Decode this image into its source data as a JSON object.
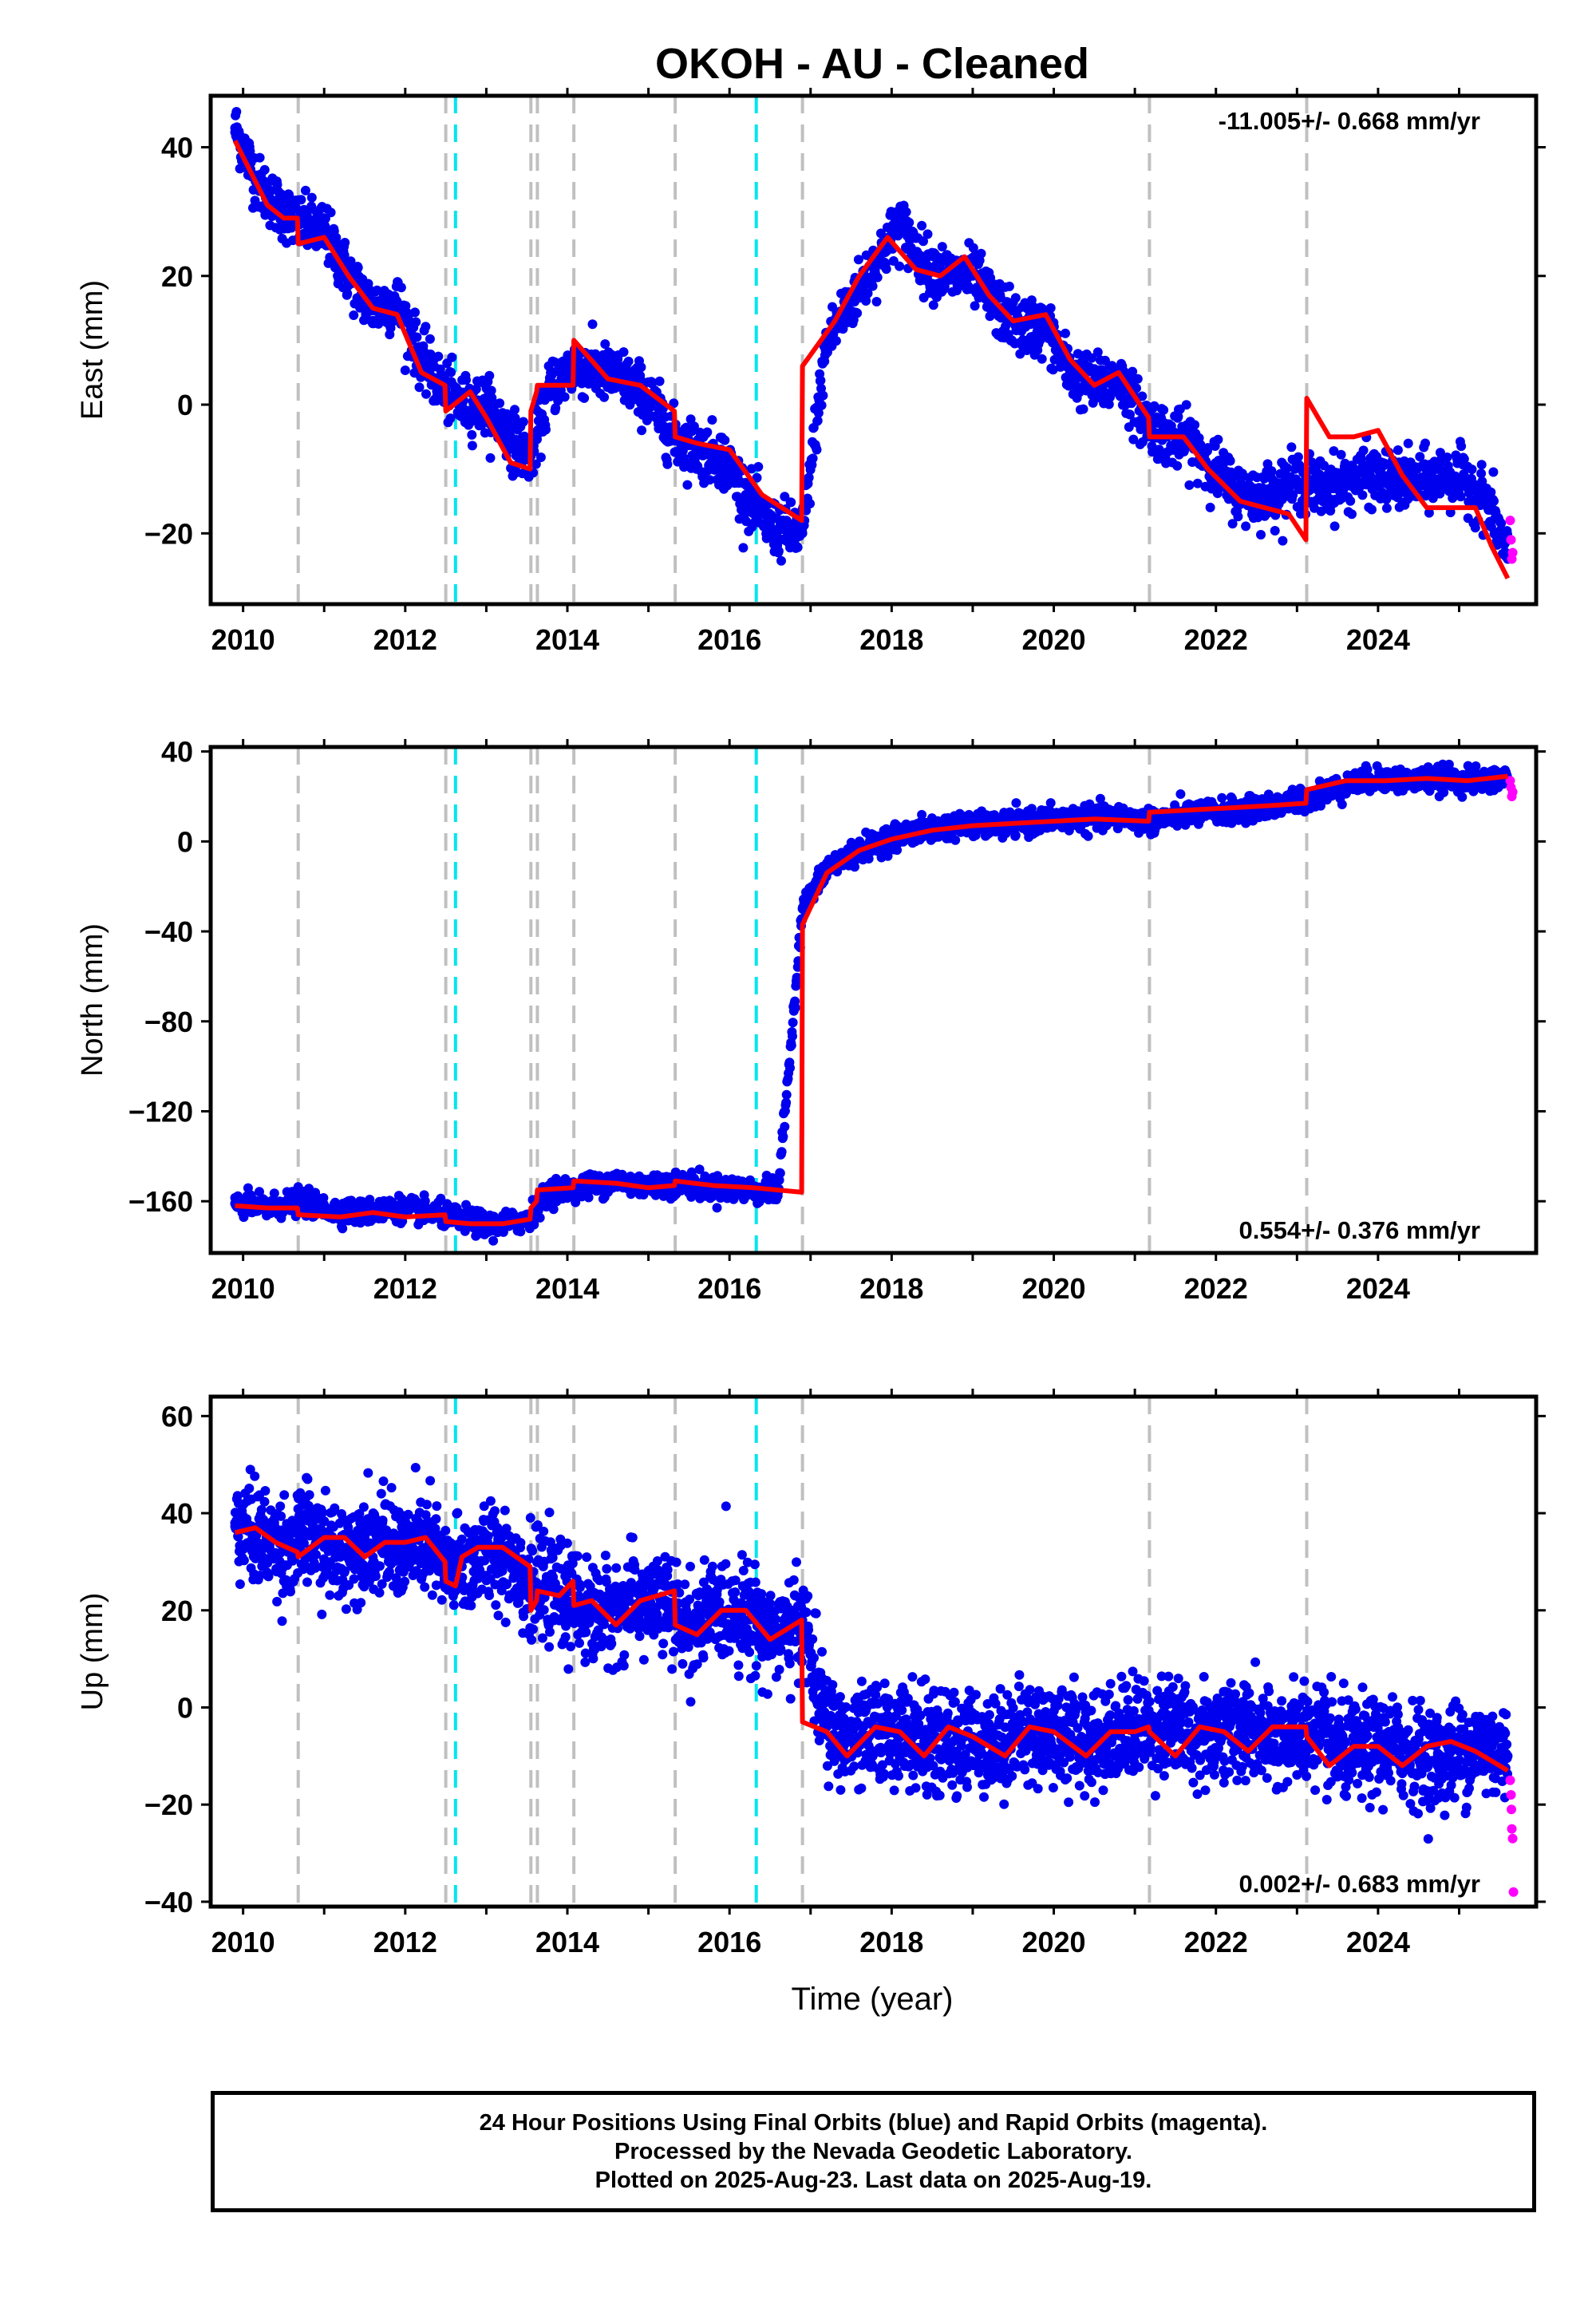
{
  "title": "OKOH  - AU - Cleaned",
  "xlabel": "Time (year)",
  "colors": {
    "final": "#0000ee",
    "rapid": "#ff00ff",
    "model": "#ff0000",
    "equipment_change": "#c0c0c0",
    "earthquake": "#00e5ee",
    "frame": "#000000"
  },
  "x_ticks": [
    2010,
    2012,
    2014,
    2016,
    2018,
    2020,
    2022,
    2024
  ],
  "xlim": [
    2009.6,
    2025.95
  ],
  "vertical_lines": {
    "equipment_change": [
      2010.68,
      2012.5,
      2013.55,
      2013.63,
      2014.08,
      2015.33,
      2016.9,
      2021.18,
      2023.12
    ],
    "earthquake": [
      2012.62,
      2016.33
    ]
  },
  "chart_data": [
    {
      "type": "scatter",
      "ylabel": "East (mm)",
      "ylim": [
        -31,
        48
      ],
      "y_ticks": [
        -20,
        0,
        20,
        40
      ],
      "rate_label": "-11.005+/- 0.668 mm/yr",
      "rate_position": "top-right",
      "series": [
        {
          "name": "Final Orbits (blue)",
          "x": [
            2009.9,
            2010.2,
            2010.5,
            2010.7,
            2011.0,
            2011.3,
            2011.6,
            2011.9,
            2012.2,
            2012.5,
            2012.7,
            2013.0,
            2013.3,
            2013.55,
            2013.8,
            2014.1,
            2014.4,
            2014.7,
            2015.0,
            2015.3,
            2015.6,
            2015.9,
            2016.2,
            2016.5,
            2016.9,
            2017.2,
            2017.5,
            2017.8,
            2018.1,
            2018.4,
            2018.7,
            2019.0,
            2019.3,
            2019.6,
            2019.9,
            2020.2,
            2020.5,
            2020.8,
            2021.1,
            2021.4,
            2021.7,
            2022.0,
            2022.3,
            2022.6,
            2023.0,
            2023.3,
            2023.6,
            2023.9,
            2024.2,
            2024.5,
            2024.8,
            2025.1,
            2025.4,
            2025.6
          ],
          "y": [
            43,
            34,
            30,
            28,
            27,
            20,
            15,
            16,
            7,
            2,
            0,
            0,
            -5,
            -8,
            3,
            6,
            5,
            4,
            1,
            -5,
            -7,
            -8,
            -14,
            -19,
            -20,
            10,
            16,
            22,
            28,
            22,
            20,
            20,
            15,
            12,
            12,
            5,
            3,
            4,
            -2,
            -5,
            -6,
            -10,
            -14,
            -14,
            -12,
            -13,
            -12,
            -11,
            -12,
            -12,
            -11,
            -12,
            -16,
            -24
          ]
        },
        {
          "name": "Rapid Orbits (magenta)",
          "x": [
            2025.63,
            2025.64,
            2025.65,
            2025.66
          ],
          "y": [
            -18,
            -21,
            -24,
            -23
          ]
        },
        {
          "name": "model",
          "x": [
            2009.9,
            2010.1,
            2010.3,
            2010.5,
            2010.67,
            2010.68,
            2011.0,
            2011.3,
            2011.6,
            2011.9,
            2012.2,
            2012.49,
            2012.5,
            2012.8,
            2013.0,
            2013.3,
            2013.54,
            2013.55,
            2013.62,
            2013.63,
            2014.07,
            2014.08,
            2014.5,
            2014.9,
            2015.32,
            2015.33,
            2015.6,
            2016.0,
            2016.4,
            2016.89,
            2016.9,
            2017.3,
            2017.6,
            2017.95,
            2018.3,
            2018.6,
            2018.9,
            2019.2,
            2019.5,
            2019.9,
            2020.2,
            2020.5,
            2020.8,
            2021.17,
            2021.18,
            2021.6,
            2021.9,
            2022.3,
            2022.6,
            2022.9,
            2023.11,
            2023.12,
            2023.4,
            2023.7,
            2024.0,
            2024.3,
            2024.6,
            2024.9,
            2025.2,
            2025.4,
            2025.6
          ],
          "y": [
            41,
            36,
            31,
            29,
            29,
            25,
            26,
            20,
            15,
            14,
            5,
            3,
            -1,
            2,
            -2,
            -9,
            -10,
            -1,
            2,
            3,
            3,
            10,
            4,
            3,
            -1,
            -5,
            -6,
            -7,
            -14,
            -18,
            6,
            13,
            20,
            26,
            21,
            20,
            23,
            17,
            13,
            14,
            7,
            3,
            5,
            -2,
            -5,
            -5,
            -10,
            -15,
            -16,
            -17,
            -21,
            1,
            -5,
            -5,
            -4,
            -11,
            -16,
            -16,
            -16,
            -22,
            -27
          ]
        }
      ]
    },
    {
      "type": "scatter",
      "ylabel": "North (mm)",
      "ylim": [
        -183,
        42
      ],
      "y_ticks": [
        -160,
        -120,
        -80,
        -40,
        0,
        40
      ],
      "rate_label": "0.554+/- 0.376 mm/yr",
      "rate_position": "bottom-right",
      "series": [
        {
          "name": "Final Orbits (blue)",
          "x": [
            2009.9,
            2010.3,
            2010.7,
            2011.1,
            2011.5,
            2011.9,
            2012.3,
            2012.7,
            2013.1,
            2013.5,
            2013.8,
            2014.2,
            2014.6,
            2015.0,
            2015.4,
            2015.8,
            2016.2,
            2016.6,
            2016.9,
            2017.2,
            2017.6,
            2018.0,
            2018.4,
            2018.8,
            2019.2,
            2019.6,
            2020.0,
            2020.4,
            2020.8,
            2021.2,
            2021.6,
            2022.0,
            2022.4,
            2022.8,
            2023.2,
            2023.6,
            2024.0,
            2024.4,
            2024.8,
            2025.2,
            2025.6
          ],
          "y": [
            -161,
            -163,
            -160,
            -164,
            -165,
            -163,
            -165,
            -168,
            -171,
            -168,
            -155,
            -154,
            -151,
            -153,
            -152,
            -154,
            -155,
            -156,
            -30,
            -12,
            -4,
            2,
            5,
            7,
            7,
            8,
            10,
            10,
            11,
            9,
            12,
            13,
            14,
            16,
            20,
            25,
            28,
            27,
            28,
            27,
            28
          ]
        },
        {
          "name": "Rapid Orbits (magenta)",
          "x": [
            2025.63,
            2025.64,
            2025.65,
            2025.66
          ],
          "y": [
            27,
            24,
            20,
            22
          ]
        },
        {
          "name": "model",
          "x": [
            2009.9,
            2010.3,
            2010.67,
            2010.68,
            2011.2,
            2011.6,
            2012.0,
            2012.49,
            2012.5,
            2012.8,
            2013.2,
            2013.54,
            2013.55,
            2013.62,
            2013.63,
            2014.07,
            2014.08,
            2014.6,
            2015.0,
            2015.32,
            2015.33,
            2015.8,
            2016.3,
            2016.89,
            2016.9,
            2017.2,
            2017.6,
            2018.0,
            2018.5,
            2019.0,
            2019.5,
            2020.0,
            2020.5,
            2021.17,
            2021.18,
            2021.7,
            2022.2,
            2022.7,
            2023.11,
            2023.12,
            2023.6,
            2024.1,
            2024.6,
            2025.1,
            2025.6
          ],
          "y": [
            -162,
            -163,
            -163,
            -166,
            -167,
            -165,
            -167,
            -166,
            -169,
            -170,
            -170,
            -168,
            -163,
            -160,
            -155,
            -154,
            -151,
            -152,
            -154,
            -153,
            -151,
            -153,
            -154,
            -156,
            -37,
            -14,
            -4,
            1,
            5,
            7,
            8,
            9,
            10,
            9,
            13,
            14,
            15,
            16,
            17,
            23,
            27,
            27,
            28,
            27,
            29
          ]
        }
      ]
    },
    {
      "type": "scatter",
      "ylabel": "Up (mm)",
      "ylim": [
        -41,
        64
      ],
      "y_ticks": [
        -40,
        -20,
        0,
        20,
        40,
        60
      ],
      "rate_label": "0.002+/- 0.683 mm/yr",
      "rate_position": "bottom-right",
      "series": [
        {
          "name": "Final Orbits (blue)",
          "x": [
            2009.9,
            2010.1,
            2010.3,
            2010.6,
            2010.8,
            2011.0,
            2011.2,
            2011.5,
            2011.8,
            2012.0,
            2012.3,
            2012.5,
            2012.7,
            2013.0,
            2013.3,
            2013.55,
            2013.7,
            2014.0,
            2014.3,
            2014.6,
            2014.9,
            2015.2,
            2015.5,
            2015.8,
            2016.1,
            2016.4,
            2016.7,
            2016.9,
            2017.2,
            2017.5,
            2017.8,
            2018.1,
            2018.4,
            2018.7,
            2019.0,
            2019.3,
            2019.6,
            2019.9,
            2020.2,
            2020.5,
            2020.8,
            2021.1,
            2021.4,
            2021.7,
            2022.0,
            2022.3,
            2022.6,
            2022.9,
            2023.2,
            2023.5,
            2023.8,
            2024.1,
            2024.4,
            2024.7,
            2025.0,
            2025.3,
            2025.6
          ],
          "y": [
            38,
            36,
            34,
            33,
            36,
            33,
            31,
            35,
            33,
            32,
            34,
            28,
            29,
            32,
            31,
            24,
            25,
            22,
            19,
            20,
            22,
            21,
            16,
            20,
            20,
            17,
            15,
            18,
            -4,
            -7,
            -5,
            -5,
            -7,
            -8,
            -6,
            -8,
            -5,
            -5,
            -6,
            -7,
            -5,
            -4,
            -3,
            -6,
            -5,
            -4,
            -7,
            -6,
            -5,
            -9,
            -9,
            -8,
            -9,
            -11,
            -9,
            -8,
            -10
          ]
        },
        {
          "name": "Rapid Orbits (magenta)",
          "x": [
            2025.63,
            2025.64,
            2025.645,
            2025.65,
            2025.66,
            2025.67
          ],
          "y": [
            -15,
            -18,
            -21,
            -25,
            -27,
            -38
          ]
        },
        {
          "name": "model",
          "x": [
            2009.9,
            2010.15,
            2010.4,
            2010.67,
            2010.68,
            2011.0,
            2011.25,
            2011.5,
            2011.75,
            2012.0,
            2012.25,
            2012.49,
            2012.5,
            2012.62,
            2012.7,
            2012.9,
            2013.2,
            2013.54,
            2013.55,
            2013.62,
            2013.63,
            2013.9,
            2014.07,
            2014.08,
            2014.3,
            2014.6,
            2014.9,
            2015.32,
            2015.33,
            2015.6,
            2015.9,
            2016.2,
            2016.5,
            2016.89,
            2016.9,
            2017.2,
            2017.45,
            2017.8,
            2018.1,
            2018.4,
            2018.7,
            2019.0,
            2019.4,
            2019.7,
            2020.0,
            2020.4,
            2020.7,
            2021.0,
            2021.17,
            2021.18,
            2021.5,
            2021.8,
            2022.1,
            2022.4,
            2022.7,
            2023.11,
            2023.12,
            2023.4,
            2023.7,
            2024.0,
            2024.3,
            2024.6,
            2024.9,
            2025.2,
            2025.4,
            2025.6
          ],
          "y": [
            36,
            37,
            34,
            32,
            31,
            35,
            35,
            31,
            34,
            34,
            35,
            30,
            26,
            25,
            31,
            33,
            33,
            29,
            20,
            22,
            24,
            23,
            26,
            21,
            22,
            17,
            22,
            24,
            17,
            15,
            20,
            20,
            14,
            18,
            -3,
            -5,
            -10,
            -4,
            -5,
            -10,
            -4,
            -6,
            -10,
            -4,
            -5,
            -10,
            -5,
            -5,
            -4,
            -5,
            -10,
            -4,
            -5,
            -9,
            -4,
            -4,
            -6,
            -12,
            -8,
            -8,
            -12,
            -8,
            -7,
            -9,
            -11,
            -13
          ]
        }
      ]
    }
  ],
  "footnote": [
    "24 Hour Positions Using Final Orbits (blue) and Rapid Orbits (magenta).",
    "Processed by the Nevada Geodetic Laboratory.",
    "Plotted on 2025-Aug-23. Last data on 2025-Aug-19."
  ]
}
